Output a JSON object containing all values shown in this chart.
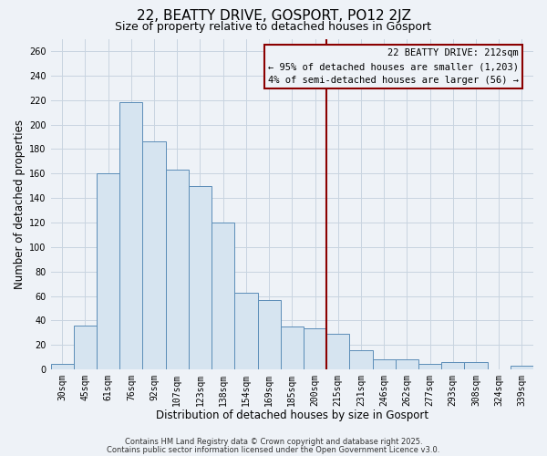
{
  "title": "22, BEATTY DRIVE, GOSPORT, PO12 2JZ",
  "subtitle": "Size of property relative to detached houses in Gosport",
  "xlabel": "Distribution of detached houses by size in Gosport",
  "ylabel": "Number of detached properties",
  "bar_labels": [
    "30sqm",
    "45sqm",
    "61sqm",
    "76sqm",
    "92sqm",
    "107sqm",
    "123sqm",
    "138sqm",
    "154sqm",
    "169sqm",
    "185sqm",
    "200sqm",
    "215sqm",
    "231sqm",
    "246sqm",
    "262sqm",
    "277sqm",
    "293sqm",
    "308sqm",
    "324sqm",
    "339sqm"
  ],
  "bar_values": [
    5,
    36,
    160,
    218,
    186,
    163,
    150,
    120,
    63,
    57,
    35,
    34,
    29,
    16,
    8,
    8,
    5,
    6,
    6,
    0,
    3
  ],
  "bar_color": "#d6e4f0",
  "bar_edge_color": "#5b8db8",
  "vline_position": 11.5,
  "vline_color": "#8b0000",
  "ylim": [
    0,
    270
  ],
  "yticks": [
    0,
    20,
    40,
    60,
    80,
    100,
    120,
    140,
    160,
    180,
    200,
    220,
    240,
    260
  ],
  "annotation_title": "22 BEATTY DRIVE: 212sqm",
  "annotation_line1": "← 95% of detached houses are smaller (1,203)",
  "annotation_line2": "4% of semi-detached houses are larger (56) →",
  "footer1": "Contains HM Land Registry data © Crown copyright and database right 2025.",
  "footer2": "Contains public sector information licensed under the Open Government Licence v3.0.",
  "background_color": "#eef2f7",
  "grid_color": "#c8d4e0",
  "title_fontsize": 11,
  "subtitle_fontsize": 9,
  "tick_fontsize": 7,
  "label_fontsize": 8.5,
  "footer_fontsize": 6
}
